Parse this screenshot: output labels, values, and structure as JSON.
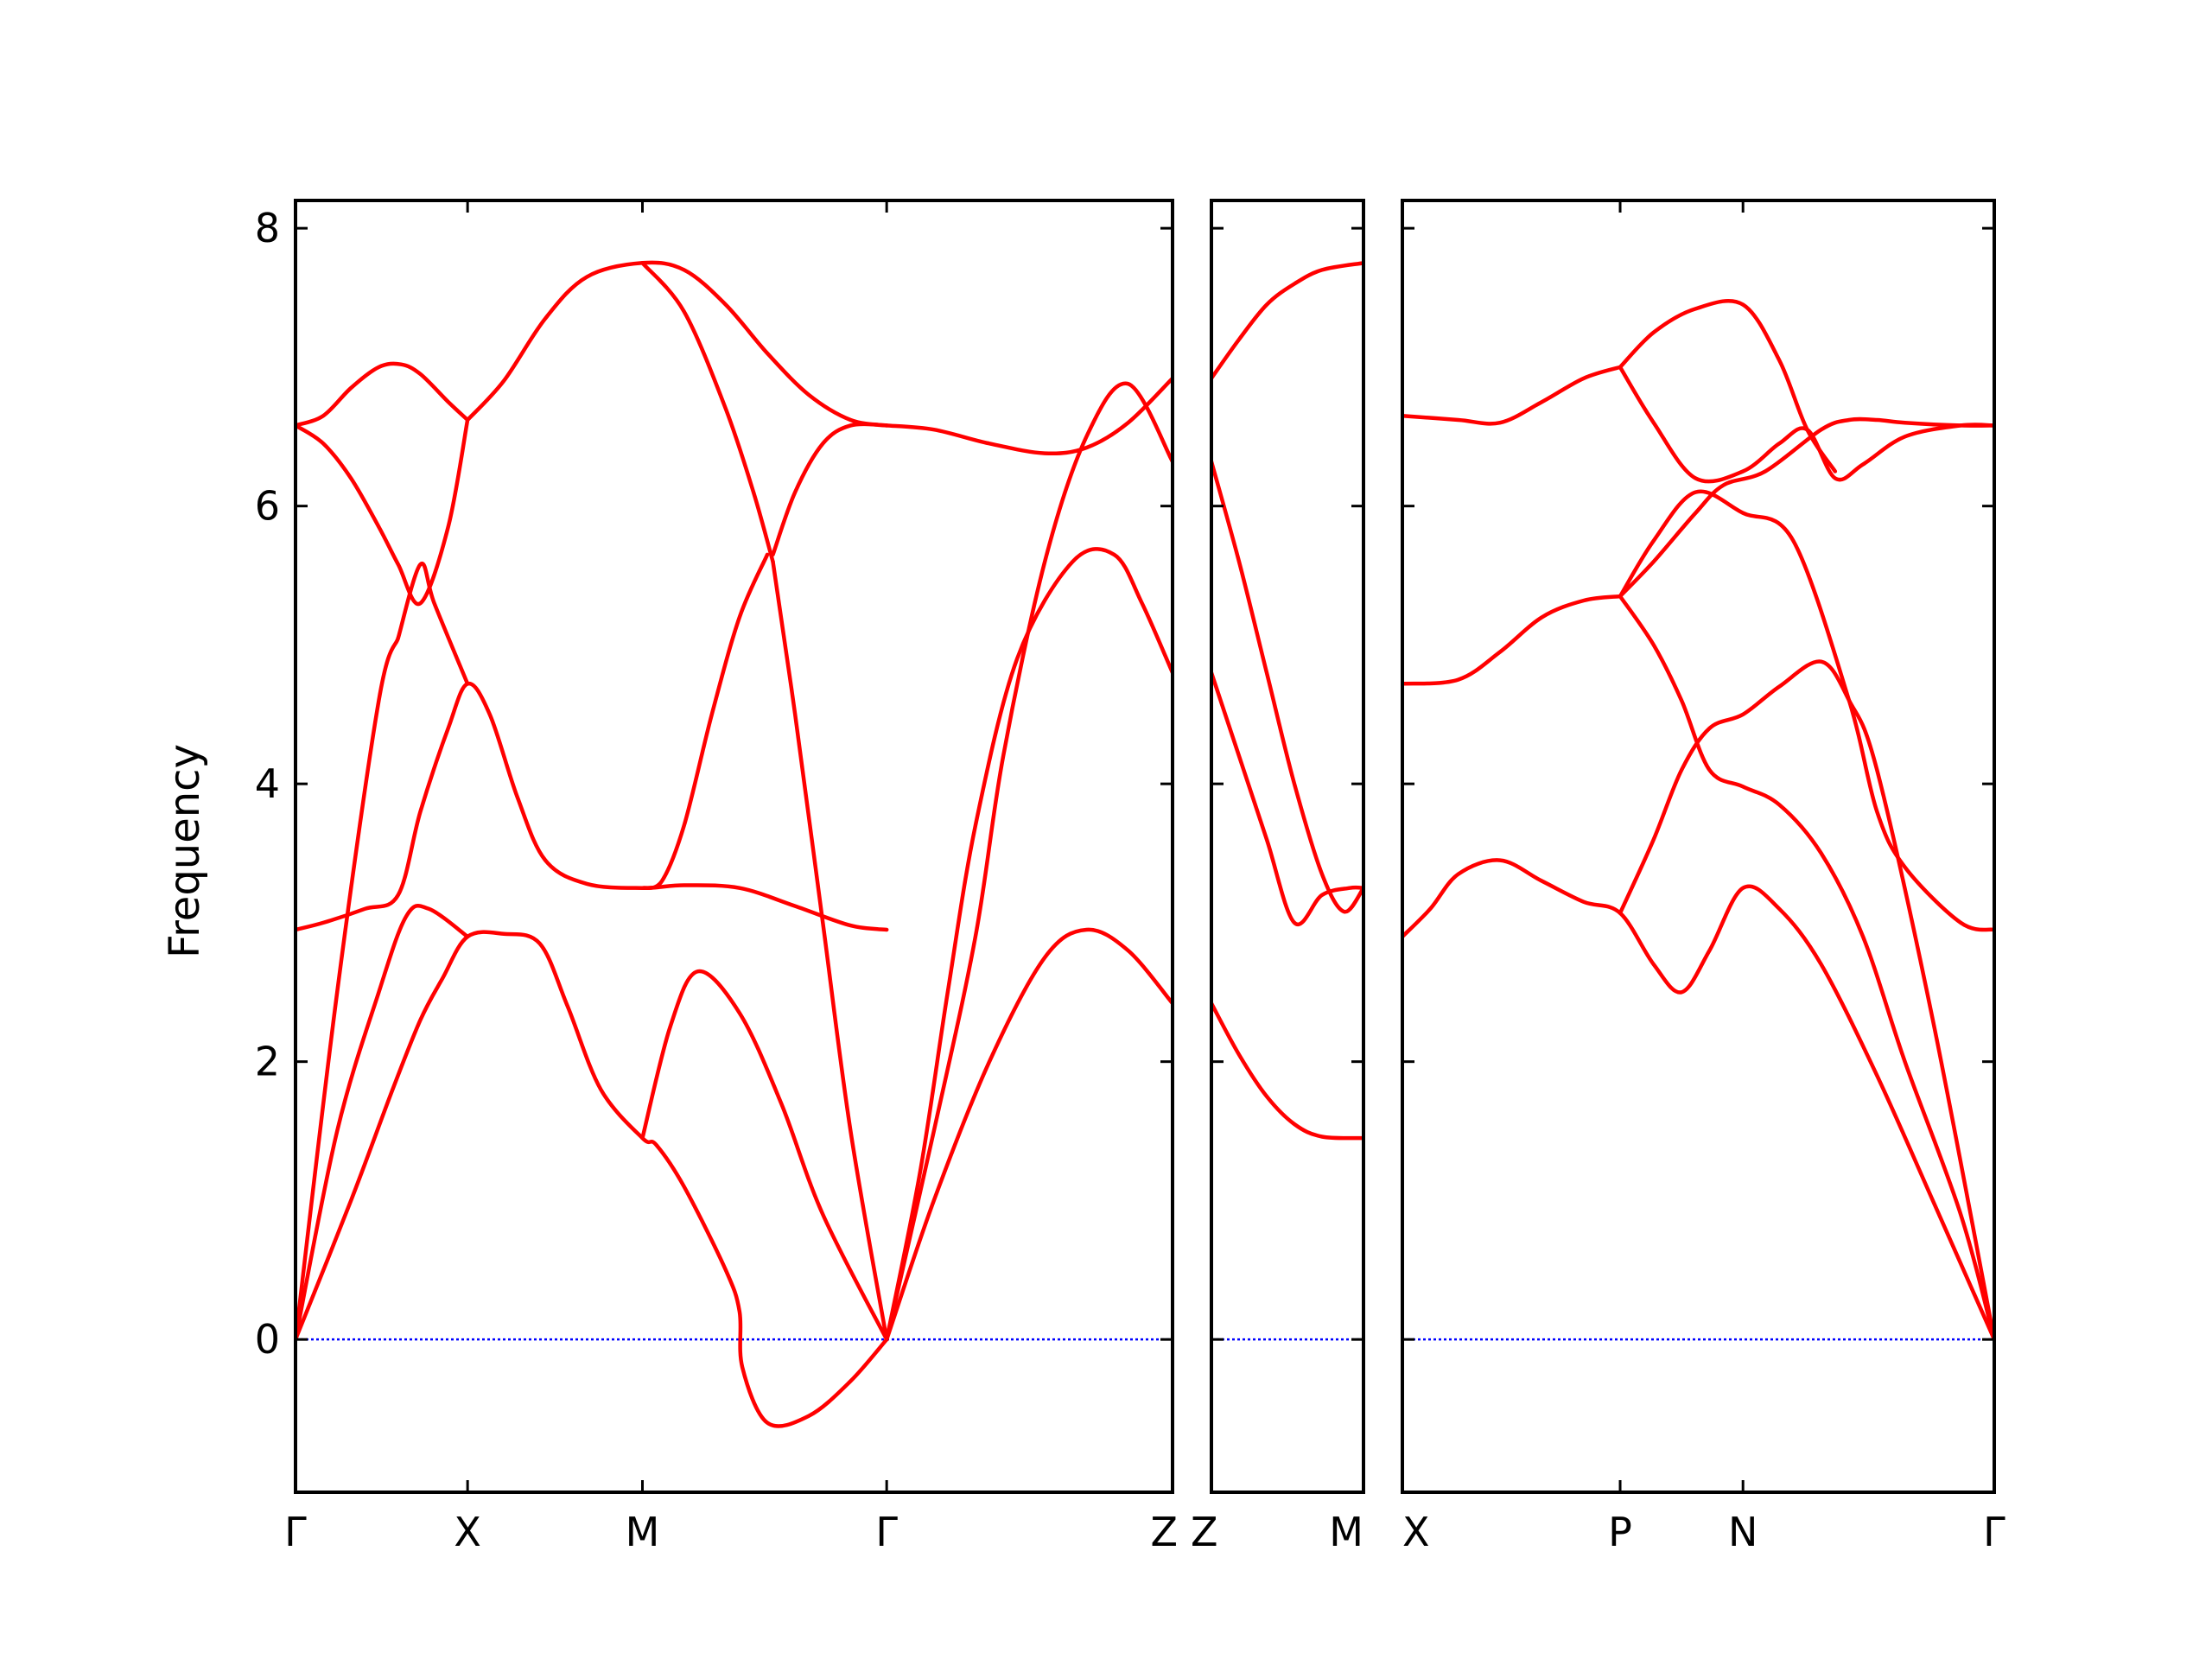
{
  "chart_data": {
    "type": "line",
    "title": "",
    "ylabel": "Frequency",
    "ylim": [
      -1.1,
      8.2
    ],
    "yticks": [
      0,
      2,
      4,
      6,
      8
    ],
    "band_color": "#ff0000",
    "zero_line_color": "#0000ff",
    "zero_line_style": "dotted",
    "grid": false,
    "panels": [
      {
        "x_range": [
          0,
          3.16
        ],
        "ticks": [
          {
            "x": 0,
            "label": "Γ"
          },
          {
            "x": 0.62,
            "label": "X"
          },
          {
            "x": 1.25,
            "label": "M"
          },
          {
            "x": 2.13,
            "label": "Γ"
          },
          {
            "x": 3.16,
            "label": "Z"
          }
        ],
        "bands": [
          {
            "x": [
              0,
              0.2,
              0.35,
              0.45,
              0.53,
              0.62,
              0.75,
              0.88,
              0.98,
              1.1,
              1.25,
              1.3,
              1.4,
              1.55,
              1.6,
              1.61,
              1.7,
              1.85,
              2.0,
              2.13
            ],
            "y": [
              0,
              1.0,
              1.8,
              2.3,
              2.6,
              2.9,
              2.92,
              2.85,
              2.4,
              1.8,
              1.45,
              1.4,
              1.1,
              0.5,
              0.2,
              -0.2,
              -0.6,
              -0.55,
              -0.3,
              0
            ]
          },
          {
            "x": [
              0,
              0.15,
              0.3,
              0.4,
              0.48,
              0.62
            ],
            "y": [
              0,
              1.5,
              2.5,
              3.05,
              3.1,
              2.9
            ]
          },
          {
            "x": [
              1.25,
              1.35,
              1.45,
              1.6,
              1.75,
              1.9,
              2.13
            ],
            "y": [
              1.45,
              2.25,
              2.65,
              2.35,
              1.7,
              0.9,
              0
            ]
          },
          {
            "x": [
              2.13,
              2.3,
              2.5,
              2.7,
              2.85,
              3.0,
              3.16
            ],
            "y": [
              0,
              1.0,
              2.0,
              2.75,
              2.95,
              2.8,
              2.42
            ]
          },
          {
            "x": [
              0,
              0.1,
              0.25,
              0.37,
              0.45,
              0.55,
              0.62,
              0.7,
              0.8,
              0.9,
              1.05,
              1.25,
              1.4,
              1.6,
              1.8,
              2.0,
              2.13
            ],
            "y": [
              2.95,
              3.0,
              3.1,
              3.2,
              3.8,
              4.4,
              4.72,
              4.5,
              3.9,
              3.45,
              3.28,
              3.25,
              3.27,
              3.25,
              3.12,
              2.98,
              2.95
            ]
          },
          {
            "x": [
              0,
              0.15,
              0.3,
              0.37
            ],
            "y": [
              0,
              2.5,
              4.6,
              5.05
            ]
          },
          {
            "x": [
              0.37,
              0.45,
              0.5,
              0.62
            ],
            "y": [
              5.05,
              5.58,
              5.3,
              4.72
            ]
          },
          {
            "x": [
              1.25,
              1.32,
              1.4,
              1.5,
              1.6,
              1.7
            ],
            "y": [
              3.25,
              3.3,
              3.7,
              4.5,
              5.2,
              5.65
            ]
          },
          {
            "x": [
              1.25,
              1.4,
              1.55,
              1.65,
              1.72
            ],
            "y": [
              7.75,
              7.4,
              6.7,
              6.1,
              5.6
            ]
          },
          {
            "x": [
              1.72,
              1.8,
              1.9,
              2.0,
              2.13
            ],
            "y": [
              5.6,
              4.5,
              3.0,
              1.5,
              0
            ]
          },
          {
            "x": [
              2.13,
              2.3,
              2.45,
              2.55,
              2.7,
              2.85,
              3.0,
              3.16
            ],
            "y": [
              0,
              1.5,
              2.9,
              4.2,
              5.6,
              6.5,
              6.88,
              6.32
            ]
          },
          {
            "x": [
              2.13,
              2.25,
              2.35,
              2.45,
              2.6,
              2.8,
              2.95,
              3.05,
              3.16
            ],
            "y": [
              0,
              1.2,
              2.5,
              3.7,
              4.9,
              5.6,
              5.65,
              5.3,
              4.8
            ]
          },
          {
            "x": [
              0,
              0.1,
              0.2,
              0.3,
              0.37,
              0.45,
              0.55,
              0.62
            ],
            "y": [
              6.58,
              6.45,
              6.2,
              5.85,
              5.58,
              5.3,
              5.85,
              6.62
            ]
          },
          {
            "x": [
              0,
              0.1,
              0.2,
              0.3,
              0.38,
              0.45,
              0.55,
              0.62
            ],
            "y": [
              6.58,
              6.65,
              6.85,
              7.0,
              7.02,
              6.95,
              6.75,
              6.62
            ]
          },
          {
            "x": [
              0.62,
              0.75,
              0.9,
              1.05,
              1.25,
              1.4,
              1.55,
              1.7,
              1.85,
              2.0,
              2.13
            ],
            "y": [
              6.62,
              6.9,
              7.35,
              7.65,
              7.75,
              7.7,
              7.45,
              7.1,
              6.8,
              6.62,
              6.58
            ]
          },
          {
            "x": [
              1.72,
              1.8,
              1.9,
              2.0,
              2.13
            ],
            "y": [
              5.65,
              6.1,
              6.45,
              6.58,
              6.58
            ]
          },
          {
            "x": [
              2.13,
              2.3,
              2.5,
              2.7,
              2.85,
              3.0,
              3.16
            ],
            "y": [
              6.58,
              6.55,
              6.45,
              6.38,
              6.42,
              6.6,
              6.92
            ]
          }
        ]
      },
      {
        "x_range": [
          0,
          0.55
        ],
        "ticks": [
          {
            "x": 0,
            "label": "Z"
          },
          {
            "x": 0.55,
            "label": "M"
          }
        ],
        "bands": [
          {
            "x": [
              0,
              0.1,
              0.2,
              0.3,
              0.4,
              0.55
            ],
            "y": [
              6.92,
              7.2,
              7.45,
              7.6,
              7.7,
              7.75
            ]
          },
          {
            "x": [
              0,
              0.1,
              0.2,
              0.3,
              0.4,
              0.48,
              0.55
            ],
            "y": [
              6.32,
              5.6,
              4.8,
              4.0,
              3.35,
              3.08,
              3.25
            ]
          },
          {
            "x": [
              0,
              0.1,
              0.2,
              0.3,
              0.4,
              0.5,
              0.55
            ],
            "y": [
              4.8,
              4.2,
              3.6,
              3.0,
              3.2,
              3.25,
              3.25
            ]
          },
          {
            "x": [
              0,
              0.1,
              0.2,
              0.3,
              0.4,
              0.55
            ],
            "y": [
              2.42,
              2.05,
              1.75,
              1.55,
              1.46,
              1.45
            ]
          }
        ]
      },
      {
        "x_range": [
          0,
          2.12
        ],
        "ticks": [
          {
            "x": 0,
            "label": "X"
          },
          {
            "x": 0.78,
            "label": "P"
          },
          {
            "x": 1.22,
            "label": "N"
          },
          {
            "x": 2.12,
            "label": "Γ"
          }
        ],
        "bands": [
          {
            "x": [
              0,
              0.1,
              0.2,
              0.35,
              0.5,
              0.65,
              0.78,
              0.9,
              1.0,
              1.1,
              1.22,
              1.35,
              1.5,
              1.7,
              1.9,
              2.12
            ],
            "y": [
              2.9,
              3.1,
              3.35,
              3.45,
              3.3,
              3.15,
              3.07,
              2.7,
              2.5,
              2.8,
              3.25,
              3.1,
              2.7,
              1.9,
              1.0,
              0
            ]
          },
          {
            "x": [
              0.78,
              0.9,
              1.0,
              1.1,
              1.22,
              1.35,
              1.5,
              1.6,
              1.7,
              1.9,
              2.12
            ],
            "y": [
              3.07,
              3.6,
              4.1,
              4.4,
              4.5,
              4.7,
              4.88,
              4.6,
              4.1,
              2.3,
              0
            ]
          },
          {
            "x": [
              0.78,
              0.9,
              1.0,
              1.1,
              1.22,
              1.35,
              1.5,
              1.65,
              1.8,
              2.0,
              2.12
            ],
            "y": [
              5.35,
              5.0,
              4.6,
              4.1,
              3.98,
              3.85,
              3.5,
              2.9,
              2.0,
              0.9,
              0
            ]
          },
          {
            "x": [
              0,
              0.2,
              0.35,
              0.5,
              0.65,
              0.78
            ],
            "y": [
              4.72,
              4.75,
              4.95,
              5.2,
              5.32,
              5.35
            ]
          },
          {
            "x": [
              0.78,
              0.9,
              1.05,
              1.15,
              1.3,
              1.5,
              1.6,
              1.7,
              1.8,
              2.0,
              2.12
            ],
            "y": [
              5.35,
              5.6,
              5.95,
              6.15,
              6.25,
              6.55,
              6.62,
              6.62,
              6.6,
              6.58,
              6.58
            ]
          },
          {
            "x": [
              0.78,
              0.9,
              1.05,
              1.22,
              1.4,
              1.6,
              1.7,
              1.8,
              2.0,
              2.12
            ],
            "y": [
              5.35,
              5.75,
              6.1,
              5.95,
              5.75,
              4.6,
              3.8,
              3.4,
              3.0,
              2.95
            ]
          },
          {
            "x": [
              0,
              0.2,
              0.35,
              0.5,
              0.65,
              0.78
            ],
            "y": [
              6.65,
              6.62,
              6.6,
              6.75,
              6.92,
              7.0
            ]
          },
          {
            "x": [
              0.78,
              0.9,
              1.05,
              1.22,
              1.35,
              1.45,
              1.55,
              1.65,
              1.8,
              2.0,
              2.12
            ],
            "y": [
              7.0,
              6.6,
              6.2,
              6.25,
              6.45,
              6.55,
              6.2,
              6.3,
              6.5,
              6.58,
              6.58
            ]
          },
          {
            "x": [
              0.78,
              0.9,
              1.05,
              1.22,
              1.35,
              1.45,
              1.55
            ],
            "y": [
              7.0,
              7.25,
              7.42,
              7.45,
              7.05,
              6.55,
              6.25
            ]
          }
        ]
      }
    ]
  }
}
